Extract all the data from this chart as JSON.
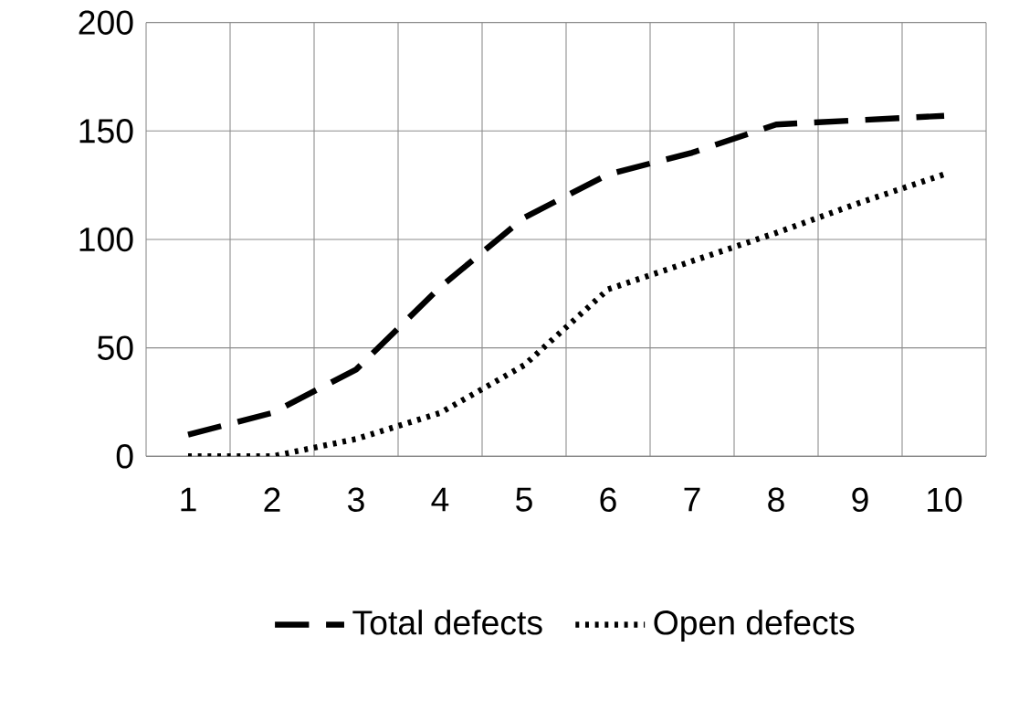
{
  "chart_data": {
    "type": "line",
    "categories": [
      "1",
      "2",
      "3",
      "4",
      "5",
      "6",
      "7",
      "8",
      "9",
      "10"
    ],
    "ylim": [
      0,
      200
    ],
    "yticks": [
      0,
      50,
      100,
      150,
      200
    ],
    "grid": true,
    "legend": "bottom",
    "marker": "none",
    "series": [
      {
        "name": "Total defects",
        "color": "#000000",
        "line_style": "dashed",
        "values": [
          10,
          20,
          40,
          78,
          110,
          130,
          140,
          153,
          155,
          157
        ]
      },
      {
        "name": "Open defects",
        "color": "#000000",
        "line_style": "dotted",
        "values": [
          0,
          0,
          8,
          20,
          42,
          77,
          90,
          103,
          117,
          130
        ]
      }
    ]
  }
}
